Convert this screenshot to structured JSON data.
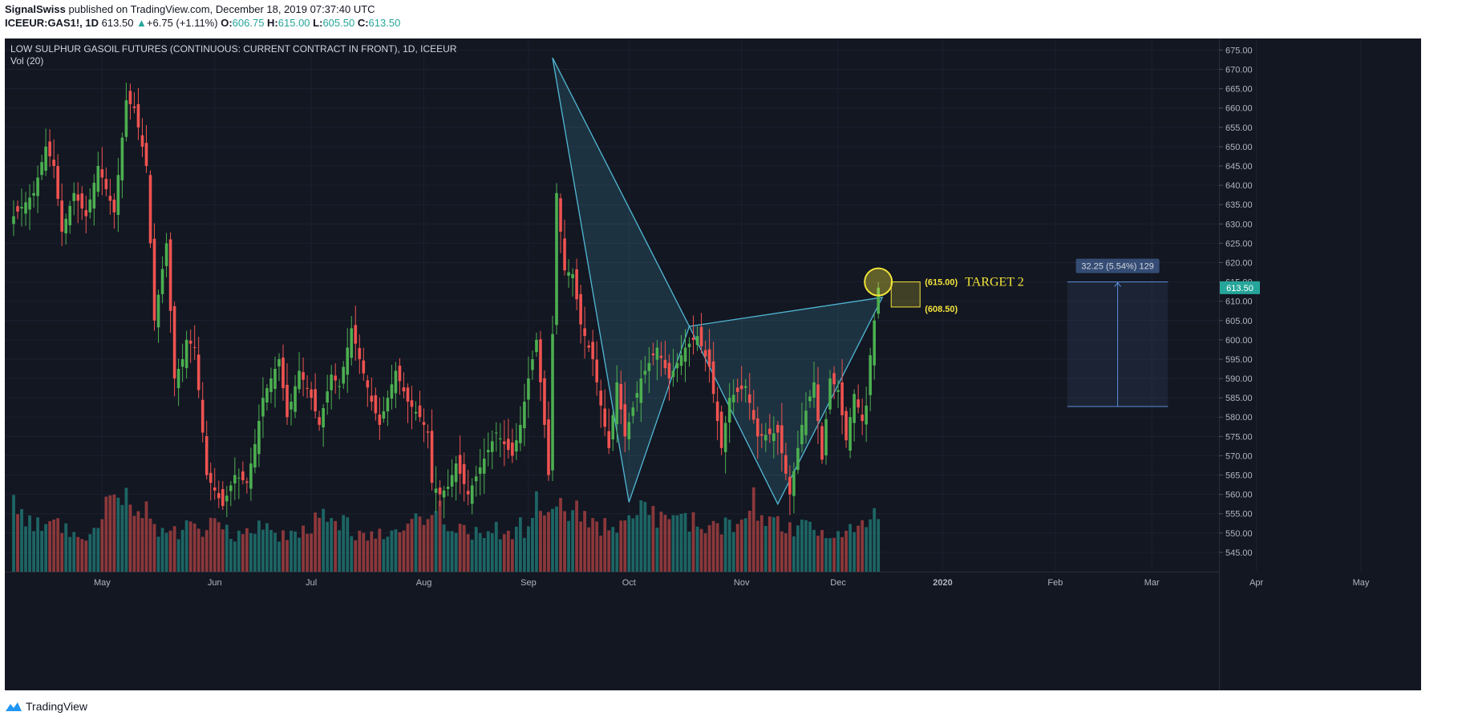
{
  "header": {
    "author": "SignalSwiss",
    "published": "published on TradingView.com, December 18, 2019 07:37:40 UTC",
    "symbol": "ICEEUR:GAS1!, 1D",
    "last": "613.50",
    "change_arrow": "▲",
    "change": "+6.75 (+1.11%)",
    "o_label": "O:",
    "o": "606.75",
    "h_label": "H:",
    "h": "615.00",
    "l_label": "L:",
    "l": "605.50",
    "c_label": "C:",
    "c": "613.50"
  },
  "chart_title": "LOW SULPHUR GASOIL FUTURES (CONTINUOUS: CURRENT CONTRACT IN FRONT), 1D, ICEEUR",
  "volume_label": "Vol (20)",
  "footer": {
    "brand": "TradingView"
  },
  "colors": {
    "background": "#131722",
    "up": "#26a69a",
    "candle_up": "#4caf50",
    "candle_down": "#ef5350",
    "vol_up": "#26a69a",
    "vol_down": "#ef5350",
    "pattern": "#4fb3cf",
    "annotation": "#f3e43a",
    "measure": "#5e8fd9"
  },
  "chart_data": {
    "type": "candlestick",
    "title": "LOW SULPHUR GASOIL FUTURES (CONTINUOUS: CURRENT CONTRACT IN FRONT), 1D, ICEEUR",
    "y_axis": {
      "ylim": [
        540,
        678
      ],
      "ticks": [
        "545.00",
        "550.00",
        "555.00",
        "560.00",
        "565.00",
        "570.00",
        "575.00",
        "580.00",
        "585.00",
        "590.00",
        "595.00",
        "600.00",
        "605.00",
        "610.00",
        "615.00",
        "620.00",
        "625.00",
        "630.00",
        "635.00",
        "640.00",
        "645.00",
        "650.00",
        "655.00",
        "660.00",
        "665.00",
        "670.00",
        "675.00"
      ],
      "current_price_label": "613.50"
    },
    "x_axis": {
      "labels": [
        "May",
        "Jun",
        "Jul",
        "Aug",
        "Sep",
        "Oct",
        "Nov",
        "Dec",
        "2020",
        "Feb",
        "Mar",
        "Apr",
        "May"
      ],
      "label_day_index": [
        22,
        50,
        74,
        102,
        128,
        153,
        181,
        205,
        231,
        259,
        283,
        309,
        335
      ]
    },
    "close_path": [
      [
        0,
        632
      ],
      [
        5,
        638
      ],
      [
        8,
        650
      ],
      [
        10,
        645
      ],
      [
        12,
        628
      ],
      [
        15,
        638
      ],
      [
        18,
        632
      ],
      [
        21,
        645
      ],
      [
        25,
        633
      ],
      [
        28,
        662
      ],
      [
        30,
        660
      ],
      [
        33,
        645
      ],
      [
        35,
        605
      ],
      [
        38,
        625
      ],
      [
        40,
        590
      ],
      [
        42,
        595
      ],
      [
        43,
        600
      ],
      [
        45,
        598
      ],
      [
        48,
        565
      ],
      [
        52,
        557
      ],
      [
        55,
        565
      ],
      [
        58,
        563
      ],
      [
        60,
        573
      ],
      [
        62,
        585
      ],
      [
        66,
        595
      ],
      [
        68,
        580
      ],
      [
        71,
        592
      ],
      [
        74,
        585
      ],
      [
        76,
        578
      ],
      [
        79,
        591
      ],
      [
        81,
        588
      ],
      [
        84,
        603
      ],
      [
        86,
        595
      ],
      [
        89,
        584
      ],
      [
        91,
        578
      ],
      [
        95,
        592
      ],
      [
        98,
        584
      ],
      [
        101,
        580
      ],
      [
        103,
        576
      ],
      [
        104,
        563
      ],
      [
        106,
        560
      ],
      [
        108,
        562
      ],
      [
        110,
        568
      ],
      [
        113,
        560
      ],
      [
        116,
        567
      ],
      [
        120,
        576
      ],
      [
        124,
        570
      ],
      [
        126,
        578
      ],
      [
        128,
        590
      ],
      [
        130,
        600
      ],
      [
        132,
        578
      ],
      [
        133,
        565
      ],
      [
        135,
        638
      ],
      [
        137,
        618
      ],
      [
        139,
        617
      ],
      [
        141,
        604
      ],
      [
        144,
        595
      ],
      [
        146,
        583
      ],
      [
        148,
        572
      ],
      [
        150,
        589
      ],
      [
        152,
        575
      ],
      [
        156,
        590
      ],
      [
        160,
        598
      ],
      [
        163,
        590
      ],
      [
        167,
        598
      ],
      [
        170,
        601
      ],
      [
        173,
        593
      ],
      [
        176,
        572
      ],
      [
        178,
        585
      ],
      [
        182,
        588
      ],
      [
        185,
        575
      ],
      [
        190,
        576
      ],
      [
        193,
        560
      ],
      [
        194,
        566
      ],
      [
        196,
        578
      ],
      [
        199,
        589
      ],
      [
        201,
        569
      ],
      [
        203,
        590
      ],
      [
        205,
        587
      ],
      [
        207,
        574
      ],
      [
        209,
        586
      ],
      [
        211,
        579
      ],
      [
        212,
        583
      ],
      [
        213,
        596
      ],
      [
        214,
        605
      ],
      [
        215,
        613.5
      ]
    ],
    "volume_path": [
      [
        0,
        8800
      ],
      [
        4,
        7200
      ],
      [
        8,
        6500
      ],
      [
        12,
        6800
      ],
      [
        16,
        5200
      ],
      [
        20,
        5800
      ],
      [
        24,
        9600
      ],
      [
        26,
        9800
      ],
      [
        28,
        10200
      ],
      [
        30,
        8900
      ],
      [
        32,
        9500
      ],
      [
        34,
        8200
      ],
      [
        36,
        6300
      ],
      [
        38,
        5200
      ],
      [
        40,
        5400
      ],
      [
        42,
        6200
      ],
      [
        44,
        8500
      ],
      [
        46,
        5000
      ],
      [
        48,
        6100
      ],
      [
        50,
        7200
      ],
      [
        52,
        6800
      ],
      [
        54,
        5500
      ],
      [
        56,
        5300
      ],
      [
        58,
        6200
      ],
      [
        60,
        6400
      ],
      [
        62,
        6000
      ],
      [
        64,
        5800
      ],
      [
        66,
        5200
      ],
      [
        68,
        5100
      ],
      [
        70,
        5400
      ],
      [
        72,
        5600
      ],
      [
        74,
        6200
      ],
      [
        76,
        9600
      ],
      [
        78,
        7400
      ],
      [
        80,
        7000
      ],
      [
        82,
        6600
      ],
      [
        84,
        5800
      ],
      [
        86,
        5200
      ],
      [
        88,
        5000
      ],
      [
        90,
        4800
      ],
      [
        92,
        5300
      ],
      [
        94,
        5100
      ],
      [
        96,
        5000
      ],
      [
        98,
        7200
      ],
      [
        100,
        6800
      ],
      [
        102,
        6400
      ],
      [
        104,
        7000
      ],
      [
        106,
        8200
      ],
      [
        108,
        6600
      ],
      [
        110,
        6200
      ],
      [
        112,
        5800
      ],
      [
        114,
        5600
      ],
      [
        116,
        5400
      ],
      [
        118,
        6000
      ],
      [
        120,
        5800
      ],
      [
        122,
        5400
      ],
      [
        124,
        4800
      ],
      [
        126,
        6200
      ],
      [
        128,
        5800
      ],
      [
        130,
        9200
      ],
      [
        132,
        9500
      ],
      [
        134,
        7800
      ],
      [
        136,
        9700
      ],
      [
        138,
        8200
      ],
      [
        140,
        8700
      ],
      [
        142,
        7000
      ],
      [
        144,
        6400
      ],
      [
        146,
        6000
      ],
      [
        148,
        6300
      ],
      [
        150,
        6000
      ],
      [
        152,
        6200
      ],
      [
        154,
        9000
      ],
      [
        156,
        9600
      ],
      [
        158,
        8800
      ],
      [
        160,
        7200
      ],
      [
        162,
        6800
      ],
      [
        164,
        8400
      ],
      [
        166,
        7800
      ],
      [
        168,
        7200
      ],
      [
        170,
        6400
      ],
      [
        172,
        6000
      ],
      [
        174,
        5800
      ],
      [
        176,
        6200
      ],
      [
        178,
        6600
      ],
      [
        180,
        7600
      ],
      [
        182,
        8800
      ],
      [
        184,
        9500
      ],
      [
        186,
        8700
      ],
      [
        188,
        7400
      ],
      [
        190,
        6800
      ],
      [
        192,
        6200
      ],
      [
        194,
        6000
      ],
      [
        196,
        6600
      ],
      [
        198,
        6800
      ],
      [
        200,
        5600
      ],
      [
        202,
        5800
      ],
      [
        204,
        5400
      ],
      [
        206,
        5600
      ],
      [
        208,
        7600
      ],
      [
        210,
        6000
      ],
      [
        212,
        7800
      ],
      [
        214,
        8000
      ],
      [
        215,
        7000
      ]
    ],
    "volume_max": 13000,
    "pattern": {
      "points": [
        [
          134,
          673
        ],
        [
          153,
          558
        ],
        [
          168,
          603.5
        ],
        [
          190,
          557.5
        ],
        [
          216,
          611
        ]
      ],
      "sub_triangles": [
        [
          0,
          1,
          2
        ],
        [
          2,
          3,
          4
        ]
      ]
    },
    "annotations": {
      "circle_price": 615.0,
      "zone": [
        608.5,
        615.0
      ],
      "upper_label": "(615.00)",
      "lower_label": "(608.50)",
      "target_label": "TARGET 2"
    },
    "measure": {
      "label": "32.25 (5.54%) 129",
      "from_price": 582.75,
      "to_price": 615.0,
      "x_range_days": [
        262,
        287
      ]
    }
  }
}
